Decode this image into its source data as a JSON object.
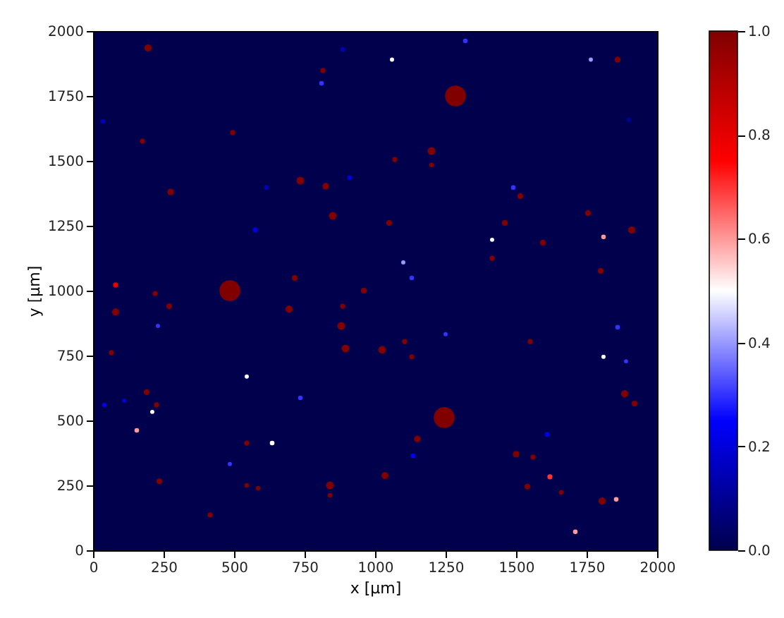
{
  "chart_data": {
    "type": "bubble",
    "xlabel": "x [µm]",
    "ylabel": "y [µm]",
    "xlim": [
      0,
      2000
    ],
    "ylim": [
      0,
      2000
    ],
    "xticks": [
      0,
      250,
      500,
      750,
      1000,
      1250,
      1500,
      1750,
      2000
    ],
    "yticks": [
      0,
      250,
      500,
      750,
      1000,
      1250,
      1500,
      1750,
      2000
    ],
    "grid": false,
    "clim": [
      0,
      1
    ],
    "cticks": [
      {
        "value": 0,
        "label": "0.0"
      },
      0.2,
      0.4,
      0.6,
      0.8,
      {
        "value": 1,
        "label": "1.0"
      }
    ],
    "x": [
      195,
      815,
      1060,
      1320,
      1285,
      1765,
      1860,
      175,
      495,
      1070,
      1200,
      1200,
      275,
      735,
      825,
      850,
      1050,
      1460,
      1515,
      1755,
      1910,
      1595,
      1810,
      1415,
      1415,
      1800,
      1100,
      1130,
      80,
      485,
      715,
      220,
      960,
      80,
      270,
      695,
      885,
      880,
      895,
      1025,
      1105,
      1130,
      230,
      65,
      545,
      735,
      1250,
      1550,
      1810,
      1890,
      1860,
      1245,
      190,
      225,
      210,
      155,
      1150,
      840,
      840,
      235,
      415,
      545,
      585,
      635,
      545,
      485,
      1035,
      1500,
      1560,
      1540,
      1620,
      1660,
      1805,
      1855,
      1710,
      1885,
      1920,
      1610,
      1135,
      40,
      110,
      35,
      575,
      615,
      910,
      810,
      885,
      1900,
      1490
    ],
    "values": [
      1935,
      1848,
      1890,
      1962,
      1750,
      1890,
      1890,
      1576,
      1609,
      1505,
      1538,
      1484,
      1380,
      1424,
      1402,
      1288,
      1261,
      1261,
      1364,
      1299,
      1234,
      1185,
      1207,
      1196,
      1125,
      1076,
      1109,
      1049,
      1022,
      1000,
      1049,
      989,
      1000,
      918,
      940,
      929,
      940,
      864,
      777,
      772,
      804,
      745,
      864,
      761,
      669,
      587,
      832,
      804,
      745,
      728,
      859,
      511,
      609,
      560,
      533,
      462,
      429,
      250,
      212,
      266,
      136,
      250,
      239,
      413,
      413,
      332,
      288,
      370,
      359,
      245,
      283,
      223,
      190,
      196,
      71,
      603,
      565,
      446,
      364,
      560,
      576,
      1652,
      1234,
      1397,
      1435,
      1799,
      1929,
      1658,
      1397
    ],
    "sizes": [
      0.12,
      0.06,
      0.04,
      0.05,
      1,
      0.04,
      0.08,
      0.06,
      0.06,
      0.06,
      0.14,
      0.05,
      0.1,
      0.14,
      0.1,
      0.14,
      0.08,
      0.08,
      0.08,
      0.08,
      0.12,
      0.08,
      0.05,
      0.04,
      0.06,
      0.08,
      0.04,
      0.05,
      0.06,
      1,
      0.08,
      0.06,
      0.08,
      0.12,
      0.08,
      0.12,
      0.06,
      0.14,
      0.14,
      0.14,
      0.06,
      0.06,
      0.04,
      0.06,
      0.04,
      0.05,
      0.04,
      0.06,
      0.04,
      0.04,
      0.05,
      1,
      0.08,
      0.06,
      0.04,
      0.05,
      0.1,
      0.14,
      0.05,
      0.08,
      0.06,
      0.05,
      0.05,
      0.05,
      0.06,
      0.04,
      0.12,
      0.1,
      0.06,
      0.08,
      0.06,
      0.05,
      0.12,
      0.05,
      0.05,
      0.12,
      0.08,
      0.06,
      0.05,
      0.04,
      0.04,
      0.05,
      0.06,
      0.05,
      0.05,
      0.05,
      0.05,
      0.05,
      0.05
    ],
    "cvalues": [
      1,
      1,
      0.5,
      0.3,
      1,
      0.4,
      1,
      1,
      1,
      1,
      1,
      1,
      1,
      1,
      1,
      1,
      1,
      1,
      1,
      1,
      1,
      1,
      0.6,
      0.5,
      1,
      1,
      0.4,
      0.3,
      0.8,
      1,
      1,
      1,
      1,
      1,
      1,
      1,
      1,
      1,
      1,
      1,
      1,
      1,
      0.3,
      1,
      0.5,
      0.3,
      0.3,
      1,
      0.5,
      0.3,
      0.3,
      1,
      1,
      1,
      0.5,
      0.6,
      1,
      1,
      1,
      1,
      1,
      1,
      1,
      0.5,
      1,
      0.3,
      1,
      1,
      1,
      1,
      0.7,
      1,
      1,
      0.6,
      0.6,
      1,
      1,
      0.2,
      0.25,
      0.25,
      0.2,
      0.15,
      0.2,
      0.15,
      0.2,
      0.3,
      0.15,
      0.1,
      0.3
    ]
  }
}
